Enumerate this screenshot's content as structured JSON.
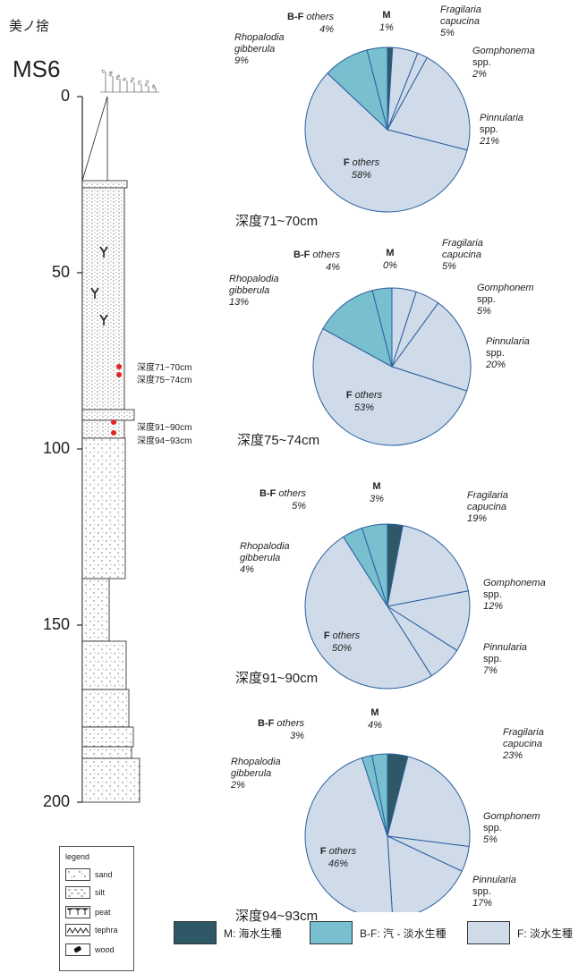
{
  "header": {
    "site": "美ノ捨",
    "core": "MS6"
  },
  "column": {
    "depth_ticks": [
      "0",
      "50",
      "100",
      "150",
      "200"
    ],
    "grain_scale": [
      "cl",
      "silt",
      "vfs",
      "fs",
      "ms",
      "cs",
      "vcs",
      "gr"
    ],
    "samples": [
      "深度71~70cm",
      "深度75~74cm",
      "深度91~90cm",
      "深度94~93cm"
    ]
  },
  "legend": {
    "title": "legend",
    "items": [
      {
        "label": "sand",
        "pattern": "sand"
      },
      {
        "label": "silt",
        "pattern": "silt"
      },
      {
        "label": "peat",
        "pattern": "peat"
      },
      {
        "label": "tephra",
        "pattern": "tephra"
      },
      {
        "label": "wood",
        "pattern": "wood"
      }
    ]
  },
  "key": [
    {
      "code": "M",
      "label": "M: 海水生種",
      "color": "#2f5866"
    },
    {
      "code": "B-F",
      "label": "B-F: 汽 - 淡水生種",
      "color": "#78bfcf"
    },
    {
      "code": "F",
      "label": "F: 淡水生種",
      "color": "#cfdbe9"
    }
  ],
  "chart_data": [
    {
      "type": "pie",
      "caption": "深度71~70cm",
      "slices": [
        {
          "name": "M",
          "value": 1,
          "label": "M",
          "pct": "1%",
          "group": "M"
        },
        {
          "name": "Fragilaria capucina",
          "value": 5,
          "label": "Fragilaria capucina",
          "pct": "5%",
          "group": "F"
        },
        {
          "name": "Gomphonema spp.",
          "value": 2,
          "label": "Gomphonema spp.",
          "pct": "2%",
          "group": "F"
        },
        {
          "name": "Pinnularia spp.",
          "value": 21,
          "label": "Pinnularia spp.",
          "pct": "21%",
          "group": "F"
        },
        {
          "name": "F others",
          "value": 58,
          "label": "F others",
          "pct": "58%",
          "group": "F"
        },
        {
          "name": "Rhopalodia gibberula",
          "value": 9,
          "label": "Rhopalodia gibberula",
          "pct": "9%",
          "group": "B-F"
        },
        {
          "name": "B-F others",
          "value": 4,
          "label": "B-F others",
          "pct": "4%",
          "group": "B-F"
        }
      ]
    },
    {
      "type": "pie",
      "caption": "深度75~74cm",
      "slices": [
        {
          "name": "M",
          "value": 0,
          "label": "M",
          "pct": "0%",
          "group": "M"
        },
        {
          "name": "Fragilaria capucina",
          "value": 5,
          "label": "Fragilaria capucina",
          "pct": "5%",
          "group": "F"
        },
        {
          "name": "Gomphonem spp.",
          "value": 5,
          "label": "Gomphonem spp.",
          "pct": "5%",
          "group": "F"
        },
        {
          "name": "Pinnularia spp.",
          "value": 20,
          "label": "Pinnularia spp.",
          "pct": "20%",
          "group": "F"
        },
        {
          "name": "F others",
          "value": 53,
          "label": "F others",
          "pct": "53%",
          "group": "F"
        },
        {
          "name": "Rhopalodia gibberula",
          "value": 13,
          "label": "Rhopalodia gibberula",
          "pct": "13%",
          "group": "B-F"
        },
        {
          "name": "B-F others",
          "value": 4,
          "label": "B-F others",
          "pct": "4%",
          "group": "B-F"
        }
      ]
    },
    {
      "type": "pie",
      "caption": "深度91~90cm",
      "slices": [
        {
          "name": "M",
          "value": 3,
          "label": "M",
          "pct": "3%",
          "group": "M"
        },
        {
          "name": "Fragilaria capucina",
          "value": 19,
          "label": "Fragilaria capucina",
          "pct": "19%",
          "group": "F"
        },
        {
          "name": "Gomphonema spp.",
          "value": 12,
          "label": "Gomphonema spp.",
          "pct": "12%",
          "group": "F"
        },
        {
          "name": "Pinnularia spp.",
          "value": 7,
          "label": "Pinnularia spp.",
          "pct": "7%",
          "group": "F"
        },
        {
          "name": "F others",
          "value": 50,
          "label": "F others",
          "pct": "50%",
          "group": "F"
        },
        {
          "name": "Rhopalodia gibberula",
          "value": 4,
          "label": "Rhopalodia gibberula",
          "pct": "4%",
          "group": "B-F"
        },
        {
          "name": "B-F others",
          "value": 5,
          "label": "B-F others",
          "pct": "5%",
          "group": "B-F"
        }
      ]
    },
    {
      "type": "pie",
      "caption": "深度94~93cm",
      "slices": [
        {
          "name": "M",
          "value": 4,
          "label": "M",
          "pct": "4%",
          "group": "M"
        },
        {
          "name": "Fragilaria capucina",
          "value": 23,
          "label": "Fragilaria capucina",
          "pct": "23%",
          "group": "F"
        },
        {
          "name": "Gomphonem spp.",
          "value": 5,
          "label": "Gomphonem spp.",
          "pct": "5%",
          "group": "F"
        },
        {
          "name": "Pinnularia spp.",
          "value": 17,
          "label": "Pinnularia spp.",
          "pct": "17%",
          "group": "F"
        },
        {
          "name": "F others",
          "value": 46,
          "label": "F others",
          "pct": "46%",
          "group": "F"
        },
        {
          "name": "Rhopalodia gibberula",
          "value": 2,
          "label": "Rhopalodia gibberula",
          "pct": "2%",
          "group": "B-F"
        },
        {
          "name": "B-F others",
          "value": 3,
          "label": "B-F others",
          "pct": "3%",
          "group": "B-F"
        }
      ]
    }
  ]
}
